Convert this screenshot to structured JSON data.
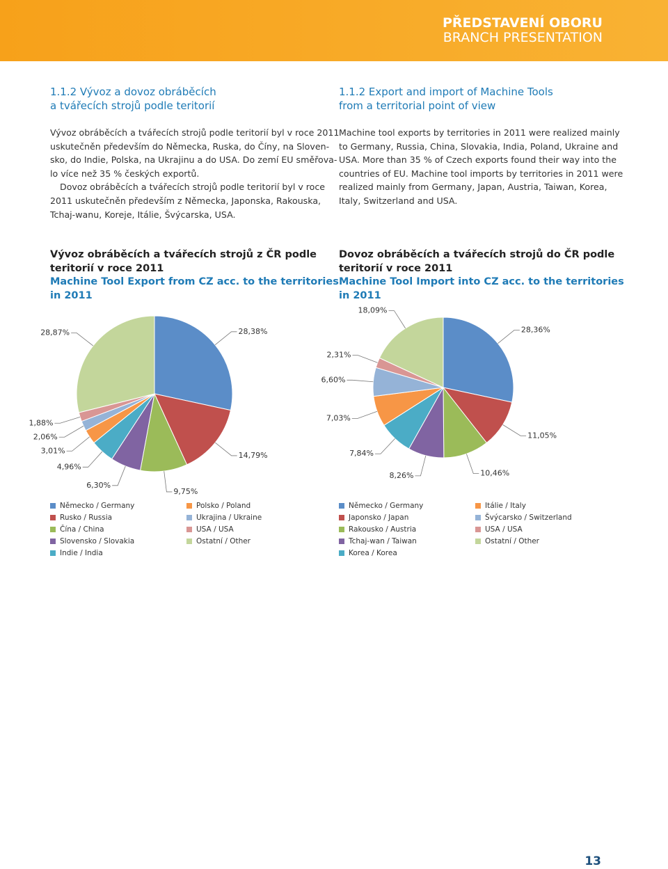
{
  "header": {
    "title": "PŘEDSTAVENÍ OBORU",
    "subtitle": "BRANCH PRESENTATION"
  },
  "left": {
    "heading": [
      "1.1.2 Vývoz a dovoz obráběcích",
      "a tvářecích strojů podle teritorií"
    ],
    "paragraphs": [
      [
        "Vývoz obráběcích a tvářecích strojů podle teritorií byl v roce 2011",
        "uskutečněn především do Německa, Ruska, do Číny, na Sloven-",
        "sko, do Indie, Polska, na Ukrajinu a do USA. Do zemí EU směřova-",
        "lo více než 35 % českých exportů."
      ],
      [
        "Dovoz obráběcích a tvářecích strojů podle teritorií byl v roce",
        "2011 uskutečněn především z Německa, Japonska, Rakouska,",
        "Tchaj-wanu, Koreje, Itálie, Švýcarska, USA."
      ]
    ]
  },
  "right": {
    "heading": [
      "1.1.2 Export and import of Machine Tools",
      "from a territorial point of view"
    ],
    "paragraphs": [
      [
        "Machine tool exports by territories in 2011 were realized mainly",
        "to Germany, Russia, China, Slovakia, India, Poland, Ukraine and",
        "USA. More than 35 % of Czech exports found their way into the",
        "countries of EU. Machine tool imports by territories in 2011 were",
        "realized mainly from Germany, Japan, Austria, Taiwan, Korea,",
        "Italy, Switzerland and USA."
      ]
    ]
  },
  "chart_data": [
    {
      "type": "pie",
      "title": [
        "Vývoz obráběcích a tvářecích strojů z ČR podle",
        "teritorií v roce 2011"
      ],
      "subtitle": [
        "Machine Tool Export from CZ acc. to the territories",
        "in 2011"
      ],
      "categories": [
        "Německo / Germany",
        "Rusko / Russia",
        "Čína / China",
        "Slovensko / Slovakia",
        "Indie / India",
        "Polsko / Poland",
        "Ukrajina / Ukraine",
        "USA / USA",
        "Ostatní / Other"
      ],
      "values": [
        28.38,
        14.79,
        9.75,
        6.3,
        4.96,
        3.01,
        2.06,
        1.88,
        28.87
      ],
      "value_labels": [
        "28,38%",
        "14,79%",
        "9,75%",
        "6,30%",
        "4,96%",
        "3,01%",
        "2,06%",
        "1,88%",
        "28,87%"
      ],
      "colors": [
        "#5b8dc8",
        "#c0504d",
        "#9bbb59",
        "#8064a2",
        "#4bacc6",
        "#f79646",
        "#95b3d7",
        "#d99694",
        "#c3d69b"
      ]
    },
    {
      "type": "pie",
      "title": [
        "Dovoz obráběcích a tvářecích strojů do ČR podle",
        "teritorií v roce 2011"
      ],
      "subtitle": [
        "Machine Tool Import into CZ acc. to the territories",
        "in 2011"
      ],
      "categories": [
        "Německo / Germany",
        "Japonsko / Japan",
        "Rakousko / Austria",
        "Tchaj-wan / Taiwan",
        "Korea / Korea",
        "Itálie / Italy",
        "Švýcarsko / Switzerland",
        "USA / USA",
        "Ostatní / Other"
      ],
      "values": [
        28.36,
        11.05,
        10.46,
        8.26,
        7.84,
        7.03,
        6.6,
        2.31,
        18.09
      ],
      "value_labels": [
        "28,36%",
        "11,05%",
        "10,46%",
        "8,26%",
        "7,84%",
        "7,03%",
        "6,60%",
        "2,31%",
        "18,09%"
      ],
      "colors": [
        "#5b8dc8",
        "#c0504d",
        "#9bbb59",
        "#8064a2",
        "#4bacc6",
        "#f79646",
        "#95b3d7",
        "#d99694",
        "#c3d69b"
      ]
    }
  ],
  "page_number": "13"
}
